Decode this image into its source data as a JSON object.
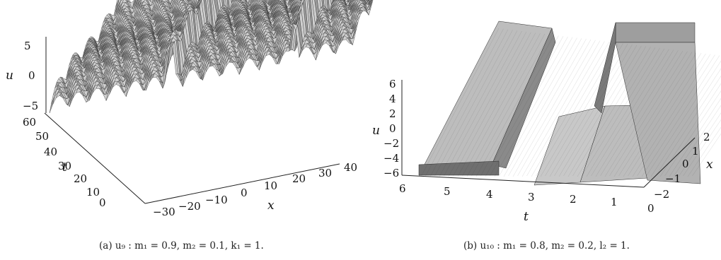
{
  "panels": [
    {
      "id": "a",
      "axes": {
        "u_label": "u",
        "t_label": "t",
        "x_label": "x",
        "u_ticks": [
          "5",
          "0",
          "−5"
        ],
        "t_ticks": [
          "60",
          "50",
          "40",
          "30",
          "20",
          "10",
          "0"
        ],
        "x_ticks": [
          "−30",
          "−20",
          "−10",
          "0",
          "10",
          "20",
          "30",
          "40"
        ]
      },
      "caption": "(a)  u₉ : m₁ = 0.9, m₂ = 0.1, k₁ = 1."
    },
    {
      "id": "b",
      "axes": {
        "u_label": "u",
        "t_label": "t",
        "x_label": "x",
        "u_ticks": [
          "6",
          "4",
          "2",
          "0",
          "−2",
          "−4",
          "−6"
        ],
        "t_ticks": [
          "6",
          "5",
          "4",
          "3",
          "2",
          "1",
          "0"
        ],
        "x_ticks": [
          "2",
          "1",
          "0",
          "−1",
          "−2"
        ]
      },
      "caption": "(b)  u₁₀ : m₁ = 0.8, m₂ = 0.2, l₂ = 1."
    }
  ],
  "colors": {
    "surface": "#cfcfcf",
    "surface_dark": "#9a9a9a",
    "mesh": "#2a2a2a",
    "axis": "#222222"
  }
}
